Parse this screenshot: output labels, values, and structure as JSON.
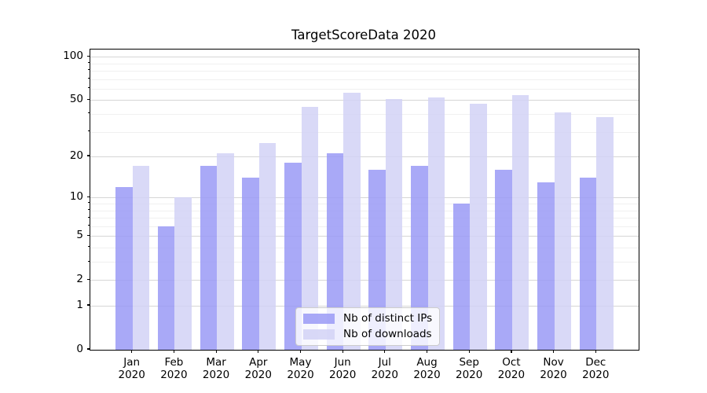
{
  "title": "TargetScoreData 2020",
  "chart_data": {
    "type": "bar",
    "title": "TargetScoreData 2020",
    "categories": [
      "Jan",
      "Feb",
      "Mar",
      "Apr",
      "May",
      "Jun",
      "Jul",
      "Aug",
      "Sep",
      "Oct",
      "Nov",
      "Dec"
    ],
    "category_year": "2020",
    "series": [
      {
        "name": "Nb of distinct IPs",
        "color": "#a9a9f7",
        "values": [
          12,
          6,
          17,
          14,
          18,
          21,
          16,
          17,
          9,
          16,
          13,
          14
        ]
      },
      {
        "name": "Nb of downloads",
        "color": "#d9d9f7",
        "values": [
          17,
          10,
          21,
          25,
          45,
          56,
          51,
          52,
          47,
          54,
          41,
          38
        ]
      }
    ],
    "xlabel": "",
    "ylabel": "",
    "yscale": "log1p",
    "ylim": [
      0,
      112
    ],
    "yticks": [
      0,
      1,
      2,
      5,
      10,
      20,
      50,
      100
    ],
    "yticks_minor": [
      3,
      4,
      6,
      7,
      8,
      9,
      30,
      40,
      60,
      70,
      80,
      90
    ],
    "grid": true,
    "legend_position": "lower center"
  },
  "colors": {
    "grid_major": "rgba(0,0,0,0.16)",
    "grid_minor": "rgba(0,0,0,0.06)",
    "spine": "#000000",
    "legend_border": "#cccccc"
  }
}
